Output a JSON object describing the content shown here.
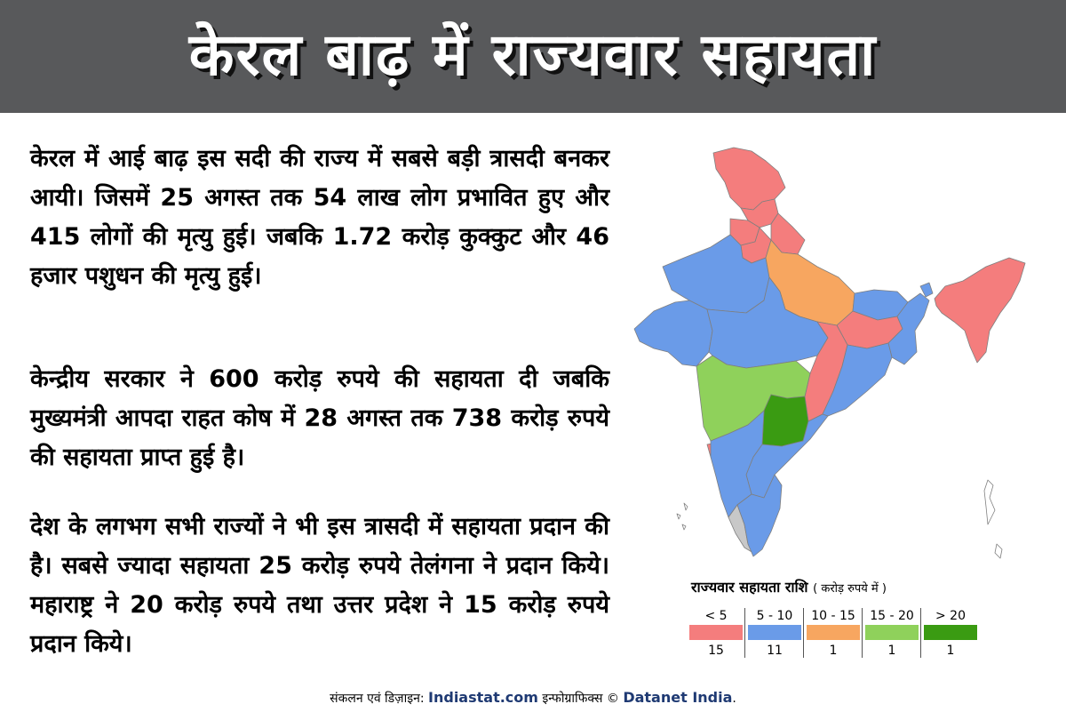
{
  "title": "केरल बाढ़ में राज्यवार सहायता",
  "paragraphs": [
    "केरल में आई बाढ़ इस सदी की राज्य में सबसे बड़ी त्रासदी बनकर आयी। जिसमें 25 अगस्त तक 54 लाख लोग प्रभावित हुए और 415 लोगों की मृत्यु हुई। जबकि 1.72 करोड़ कुक्कुट और 46 हजार पशुधन की मृत्यु हुई।",
    "केन्द्रीय सरकार ने 600 करोड़ रुपये की सहायता दी जबकि मुख्यमंत्री आपदा राहत कोष में 28 अगस्त तक 738 करोड़ रुपये की सहायता प्राप्त हुई है।",
    "देश के लगभग सभी राज्यों ने भी इस त्रासदी में सहायता प्रदान की है। सबसे ज्यादा सहायता 25 करोड़ रुपये तेलंगना ने प्रदान किये। महाराष्ट्र ने 20 करोड़ रुपये तथा उत्तर प्रदेश ने 15 करोड़ रुपये प्रदान किये।"
  ],
  "legend": {
    "title": "राज्यवार सहायता राशि",
    "unit": "( करोड़ रुपये में )",
    "items": [
      {
        "range": "< 5",
        "count": "15",
        "color": "#f47d7d"
      },
      {
        "range": "5 - 10",
        "count": "11",
        "color": "#6a9be8"
      },
      {
        "range": "10 - 15",
        "count": "1",
        "color": "#f7a660"
      },
      {
        "range": "15 - 20",
        "count": "1",
        "color": "#8fd15b"
      },
      {
        "range": "> 20",
        "count": "1",
        "color": "#3a9b12"
      }
    ]
  },
  "map_colors": {
    "kerala": "#c8c8c8",
    "border": "#8a8a8a"
  },
  "footer": {
    "prefix": "संकलन एवं डिज़ाइन:",
    "brand1": "Indiastat.com",
    "middle": "इन्फोग्राफिक्स ©",
    "brand2": "Datanet India",
    "suffix": "."
  }
}
